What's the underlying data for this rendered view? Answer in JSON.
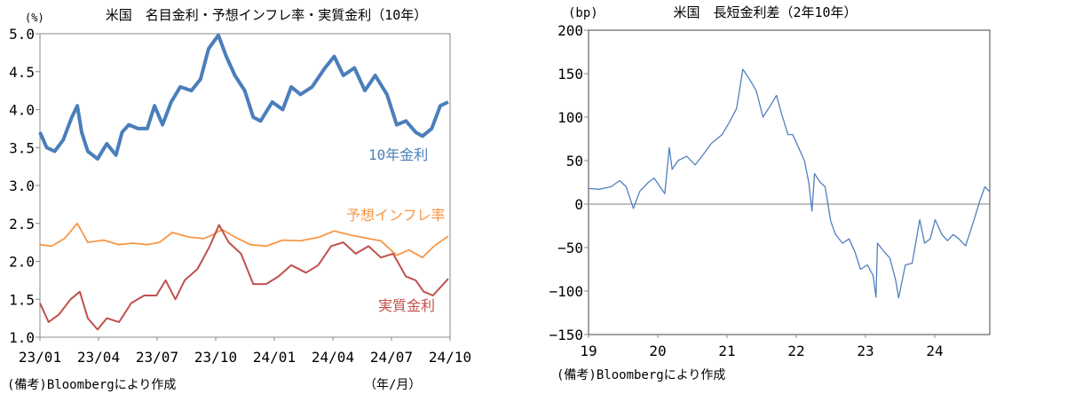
{
  "chart_data": [
    {
      "type": "line",
      "title": "米国　名目金利・予想インフレ率・実質金利（10年）",
      "ylabel": "(%)",
      "xlabel": "（年/月）",
      "ylim": [
        1.0,
        5.0
      ],
      "xlim": [
        "2023-01-01",
        "2024-10-31"
      ],
      "yticks": [
        "5.0",
        "4.5",
        "4.0",
        "3.5",
        "3.0",
        "2.5",
        "2.0",
        "1.5",
        "1.0"
      ],
      "xticks": [
        "23/01",
        "23/04",
        "23/07",
        "23/10",
        "24/01",
        "24/04",
        "24/07",
        "24/10"
      ],
      "grid": false,
      "note": "(備考)Bloombergにより作成",
      "series": [
        {
          "name": "10年金利",
          "color": "#4a7ebb",
          "x": [
            "2023-01-01",
            "2023-01-12",
            "2023-01-25",
            "2023-02-08",
            "2023-02-22",
            "2023-03-03",
            "2023-03-10",
            "2023-03-20",
            "2023-04-05",
            "2023-04-20",
            "2023-05-05",
            "2023-05-15",
            "2023-05-26",
            "2023-06-10",
            "2023-06-25",
            "2023-07-07",
            "2023-07-20",
            "2023-08-03",
            "2023-08-18",
            "2023-09-05",
            "2023-09-20",
            "2023-10-03",
            "2023-10-19",
            "2023-11-01",
            "2023-11-15",
            "2023-12-01",
            "2023-12-15",
            "2023-12-27",
            "2024-01-15",
            "2024-02-01",
            "2024-02-15",
            "2024-03-01",
            "2024-03-20",
            "2024-04-10",
            "2024-04-25",
            "2024-05-10",
            "2024-05-28",
            "2024-06-14",
            "2024-07-01",
            "2024-07-20",
            "2024-08-05",
            "2024-08-20",
            "2024-09-05",
            "2024-09-16",
            "2024-10-01",
            "2024-10-15",
            "2024-10-28"
          ],
          "y": [
            3.7,
            3.5,
            3.45,
            3.6,
            3.9,
            4.05,
            3.7,
            3.45,
            3.35,
            3.55,
            3.4,
            3.7,
            3.8,
            3.75,
            3.75,
            4.05,
            3.8,
            4.1,
            4.3,
            4.25,
            4.4,
            4.8,
            4.98,
            4.7,
            4.45,
            4.25,
            3.9,
            3.85,
            4.1,
            4.0,
            4.3,
            4.2,
            4.3,
            4.55,
            4.7,
            4.45,
            4.55,
            4.25,
            4.45,
            4.2,
            3.8,
            3.85,
            3.7,
            3.65,
            3.75,
            4.05,
            4.1
          ]
        },
        {
          "name": "予想インフレ率",
          "color": "#f79646",
          "x": [
            "2023-01-01",
            "2023-01-20",
            "2023-02-10",
            "2023-03-03",
            "2023-03-20",
            "2023-04-15",
            "2023-05-10",
            "2023-06-01",
            "2023-06-25",
            "2023-07-15",
            "2023-08-05",
            "2023-09-01",
            "2023-09-25",
            "2023-10-10",
            "2023-10-25",
            "2023-11-15",
            "2023-12-10",
            "2024-01-05",
            "2024-02-01",
            "2024-03-01",
            "2024-04-01",
            "2024-04-25",
            "2024-05-20",
            "2024-06-20",
            "2024-07-10",
            "2024-08-05",
            "2024-08-25",
            "2024-09-16",
            "2024-10-05",
            "2024-10-28"
          ],
          "y": [
            2.22,
            2.2,
            2.3,
            2.5,
            2.25,
            2.28,
            2.22,
            2.24,
            2.22,
            2.25,
            2.38,
            2.32,
            2.3,
            2.35,
            2.42,
            2.32,
            2.22,
            2.2,
            2.28,
            2.27,
            2.32,
            2.4,
            2.35,
            2.3,
            2.27,
            2.08,
            2.15,
            2.05,
            2.2,
            2.33
          ]
        },
        {
          "name": "実質金利",
          "color": "#c0504d",
          "x": [
            "2023-01-01",
            "2023-01-15",
            "2023-02-01",
            "2023-02-20",
            "2023-03-07",
            "2023-03-20",
            "2023-04-05",
            "2023-04-20",
            "2023-05-10",
            "2023-05-30",
            "2023-06-20",
            "2023-07-10",
            "2023-07-25",
            "2023-08-10",
            "2023-08-25",
            "2023-09-15",
            "2023-10-05",
            "2023-10-20",
            "2023-11-05",
            "2023-11-25",
            "2023-12-15",
            "2024-01-05",
            "2024-01-25",
            "2024-02-15",
            "2024-03-10",
            "2024-03-30",
            "2024-04-20",
            "2024-05-10",
            "2024-05-30",
            "2024-06-20",
            "2024-07-10",
            "2024-07-30",
            "2024-08-20",
            "2024-09-05",
            "2024-09-18",
            "2024-10-03",
            "2024-10-28"
          ],
          "y": [
            1.45,
            1.2,
            1.3,
            1.5,
            1.6,
            1.25,
            1.1,
            1.25,
            1.2,
            1.45,
            1.55,
            1.55,
            1.75,
            1.5,
            1.75,
            1.9,
            2.2,
            2.48,
            2.25,
            2.1,
            1.7,
            1.7,
            1.8,
            1.95,
            1.85,
            1.95,
            2.2,
            2.25,
            2.1,
            2.2,
            2.05,
            2.1,
            1.8,
            1.75,
            1.6,
            1.55,
            1.77
          ]
        }
      ]
    },
    {
      "type": "line",
      "title": "米国　長短金利差（2年10年）",
      "ylabel": "(bp)",
      "ylim": [
        -150,
        200
      ],
      "xlim": [
        "2019-01-01",
        "2024-10-31"
      ],
      "yticks": [
        "200",
        "150",
        "100",
        "50",
        "0",
        "−50",
        "−100",
        "−150"
      ],
      "xticks": [
        "19",
        "20",
        "21",
        "22",
        "23",
        "24"
      ],
      "grid": false,
      "note": "(備考)Bloombergにより作成",
      "series": [
        {
          "color": "#4f81bd",
          "x": [
            "2019-01-01",
            "2019-03-01",
            "2019-05-01",
            "2019-06-15",
            "2019-07-20",
            "2019-08-27",
            "2019-10-01",
            "2019-11-15",
            "2019-12-15",
            "2020-02-10",
            "2020-03-05",
            "2020-03-20",
            "2020-04-20",
            "2020-06-05",
            "2020-07-20",
            "2020-08-25",
            "2020-10-15",
            "2020-12-10",
            "2021-01-20",
            "2021-02-25",
            "2021-03-30",
            "2021-05-01",
            "2021-06-10",
            "2021-07-15",
            "2021-08-20",
            "2021-09-25",
            "2021-10-20",
            "2021-11-25",
            "2021-12-20",
            "2022-01-20",
            "2022-02-20",
            "2022-03-15",
            "2022-04-01",
            "2022-04-15",
            "2022-05-15",
            "2022-06-10",
            "2022-07-10",
            "2022-08-05",
            "2022-09-10",
            "2022-10-15",
            "2022-11-15",
            "2022-12-15",
            "2023-01-20",
            "2023-02-20",
            "2023-03-07",
            "2023-03-15",
            "2023-04-20",
            "2023-05-20",
            "2023-06-20",
            "2023-07-05",
            "2023-08-10",
            "2023-09-15",
            "2023-10-25",
            "2023-11-20",
            "2023-12-20",
            "2024-01-15",
            "2024-02-20",
            "2024-03-20",
            "2024-04-20",
            "2024-05-20",
            "2024-06-25",
            "2024-07-25",
            "2024-08-20",
            "2024-09-10",
            "2024-10-05",
            "2024-10-31"
          ],
          "y": [
            18,
            17,
            20,
            27,
            20,
            -5,
            15,
            25,
            30,
            12,
            65,
            40,
            50,
            55,
            45,
            55,
            70,
            80,
            95,
            110,
            155,
            145,
            130,
            100,
            112,
            125,
            105,
            80,
            80,
            65,
            50,
            25,
            -8,
            35,
            25,
            20,
            -20,
            -35,
            -45,
            -40,
            -55,
            -75,
            -70,
            -82,
            -107,
            -45,
            -55,
            -62,
            -88,
            -108,
            -70,
            -68,
            -18,
            -45,
            -40,
            -18,
            -35,
            -42,
            -35,
            -40,
            -48,
            -28,
            -10,
            5,
            20,
            14
          ]
        }
      ]
    }
  ]
}
